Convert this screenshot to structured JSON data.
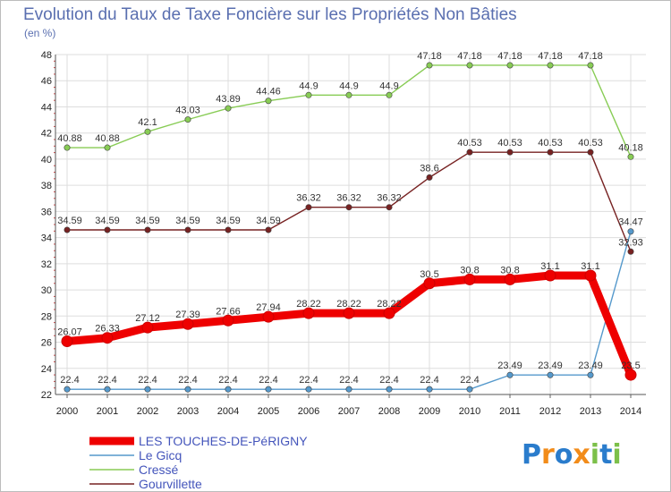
{
  "chart_data": {
    "type": "line",
    "title": "Evolution du Taux de Taxe Foncière sur les Propriétés Non Bâties",
    "subtitle": "(en %)",
    "x": [
      "2000",
      "2001",
      "2002",
      "2003",
      "2004",
      "2005",
      "2006",
      "2007",
      "2008",
      "2009",
      "2010",
      "2011",
      "2012",
      "2013",
      "2014"
    ],
    "ylim": [
      22,
      48
    ],
    "yticks": [
      22,
      24,
      26,
      28,
      30,
      32,
      34,
      36,
      38,
      40,
      42,
      44,
      46,
      48
    ],
    "grid": true,
    "legend_position": "bottom-left",
    "series": [
      {
        "name": "LES TOUCHES-DE-PéRIGNY",
        "color": "#ee0000",
        "values": [
          26.07,
          26.33,
          27.12,
          27.39,
          27.66,
          27.94,
          28.22,
          28.22,
          28.22,
          30.5,
          30.8,
          30.8,
          31.1,
          31.1,
          23.5
        ],
        "labels": [
          "26.07",
          "26.33",
          "27.12",
          "27.39",
          "27.66",
          "27.94",
          "28.22",
          "28.22",
          "28.22",
          "30.5",
          "30.8",
          "30.8",
          "31.1",
          "31.1",
          "23.5"
        ]
      },
      {
        "name": "Le Gicq",
        "color": "#5599cc",
        "values": [
          22.4,
          22.4,
          22.4,
          22.4,
          22.4,
          22.4,
          22.4,
          22.4,
          22.4,
          22.4,
          22.4,
          23.49,
          23.49,
          23.49,
          34.47
        ],
        "labels": [
          "22.4",
          "22.4",
          "22.4",
          "22.4",
          "22.4",
          "22.4",
          "22.4",
          "22.4",
          "22.4",
          "22.4",
          "22.4",
          "23.49",
          "23.49",
          "23.49",
          "34.47"
        ]
      },
      {
        "name": "Cressé",
        "color": "#88cc55",
        "values": [
          40.88,
          40.88,
          42.1,
          43.03,
          43.89,
          44.46,
          44.9,
          44.9,
          44.9,
          47.18,
          47.18,
          47.18,
          47.18,
          47.18,
          40.18
        ],
        "labels": [
          "40.88",
          "40.88",
          "42.1",
          "43.03",
          "43.89",
          "44.46",
          "44.9",
          "44.9",
          "44.9",
          "47.18",
          "47.18",
          "47.18",
          "47.18",
          "47.18",
          "40.18"
        ]
      },
      {
        "name": "Gourvillette",
        "color": "#772222",
        "values": [
          34.59,
          34.59,
          34.59,
          34.59,
          34.59,
          34.59,
          36.32,
          36.32,
          36.32,
          38.6,
          40.53,
          40.53,
          40.53,
          40.53,
          32.93
        ],
        "labels": [
          "34.59",
          "34.59",
          "34.59",
          "34.59",
          "34.59",
          "34.59",
          "36.32",
          "36.32",
          "36.32",
          "38.6",
          "40.53",
          "40.53",
          "40.53",
          "40.53",
          "32.93"
        ]
      }
    ]
  },
  "logo": {
    "text": "Proxiti",
    "colors": [
      "#2a7ccc",
      "#f28c1a",
      "#7cc04a"
    ]
  }
}
